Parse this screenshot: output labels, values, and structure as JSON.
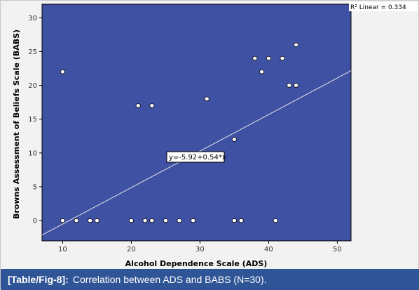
{
  "caption": {
    "label": "[Table/Fig-8]:",
    "text": "Correlation between ADS and BABS (N=30)."
  },
  "colors": {
    "plot_background": "#3f51a3",
    "point_fill": "#ffffff",
    "point_stroke": "#000000",
    "fit_line": "#e6e6e6",
    "caption_background": "#2f5597"
  },
  "chart_data": {
    "type": "scatter",
    "xlabel": "Alcohol Dependence Scale (ADS)",
    "ylabel": "Browns Assessment of Beliefs Scale (BABS)",
    "xlim": [
      7,
      52
    ],
    "ylim": [
      -3,
      32
    ],
    "x_ticks": [
      10,
      20,
      30,
      40,
      50
    ],
    "y_ticks": [
      0,
      5,
      10,
      15,
      20,
      25,
      30
    ],
    "grid": false,
    "points": [
      {
        "x": 10,
        "y": 22
      },
      {
        "x": 10,
        "y": 0
      },
      {
        "x": 12,
        "y": 0
      },
      {
        "x": 14,
        "y": 0
      },
      {
        "x": 15,
        "y": 0
      },
      {
        "x": 20,
        "y": 0
      },
      {
        "x": 21,
        "y": 17
      },
      {
        "x": 22,
        "y": 0
      },
      {
        "x": 23,
        "y": 17
      },
      {
        "x": 23,
        "y": 0
      },
      {
        "x": 25,
        "y": 0
      },
      {
        "x": 27,
        "y": 0
      },
      {
        "x": 29,
        "y": 0
      },
      {
        "x": 31,
        "y": 18
      },
      {
        "x": 35,
        "y": 12
      },
      {
        "x": 35,
        "y": 0
      },
      {
        "x": 36,
        "y": 0
      },
      {
        "x": 38,
        "y": 24
      },
      {
        "x": 39,
        "y": 22
      },
      {
        "x": 40,
        "y": 24
      },
      {
        "x": 41,
        "y": 0
      },
      {
        "x": 42,
        "y": 24
      },
      {
        "x": 43,
        "y": 20
      },
      {
        "x": 44,
        "y": 26
      },
      {
        "x": 44,
        "y": 20
      }
    ],
    "fit_line": {
      "intercept": -5.92,
      "slope": 0.54,
      "equation_label": "y=-5.92+0.54*x",
      "r2_label": "R² Linear = 0.334"
    }
  }
}
